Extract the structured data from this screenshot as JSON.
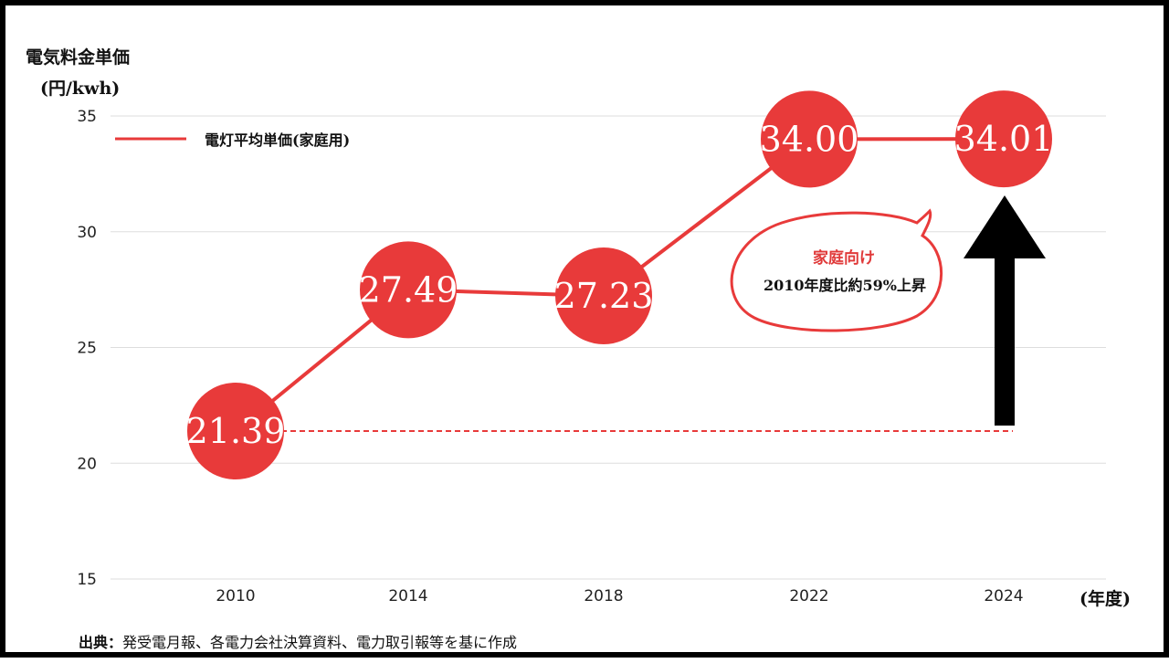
{
  "chart_data": {
    "type": "line",
    "ylabel_line1": "電気料金単価",
    "ylabel_line2": "(円/kwh)",
    "xlabel": "(年度)",
    "categories": [
      "2010",
      "2014",
      "2018",
      "2022",
      "2024"
    ],
    "yticks": [
      "35",
      "30",
      "25",
      "20",
      "15"
    ],
    "ylim": [
      15,
      35
    ],
    "grid": true,
    "legend_position": "top-left",
    "series": [
      {
        "name": "電灯平均単価(家庭用)",
        "values": [
          21.39,
          27.49,
          27.23,
          34.0,
          34.01
        ],
        "labels": [
          "21.39",
          "27.49",
          "27.23",
          "34.00",
          "34.01"
        ],
        "color": "#e83a3a"
      }
    ],
    "annotation": {
      "title": "家庭向け",
      "body": "2010年度比約59%上昇"
    }
  },
  "footer": {
    "source_label": "出典：",
    "source_text": "発受電月報、各電力会社決算資料、電力取引報等を基に作成"
  },
  "colors": {
    "series": "#e83a3a",
    "grid": "#dddddd",
    "arrow": "#000000",
    "border": "#000000"
  }
}
